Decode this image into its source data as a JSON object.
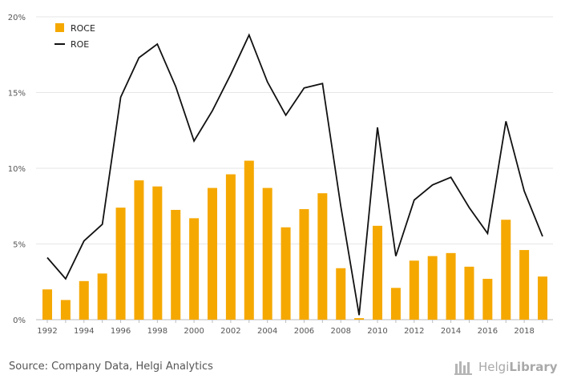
{
  "chart_data": {
    "type": "bar",
    "x": [
      1992,
      1993,
      1994,
      1995,
      1996,
      1997,
      1998,
      1999,
      2000,
      2001,
      2002,
      2003,
      2004,
      2005,
      2006,
      2007,
      2008,
      2009,
      2010,
      2011,
      2012,
      2013,
      2014,
      2015,
      2016,
      2017,
      2018,
      2019
    ],
    "xtick_labels": [
      "1992",
      "1994",
      "1996",
      "1998",
      "2000",
      "2002",
      "2004",
      "2006",
      "2008",
      "2010",
      "2012",
      "2014",
      "2016",
      "2018"
    ],
    "ytick_labels": [
      "0%",
      "5%",
      "10%",
      "15%",
      "20%"
    ],
    "ylim": [
      0,
      20
    ],
    "grid": true,
    "legend_position": "top-left",
    "series": [
      {
        "name": "ROCE",
        "kind": "bar",
        "color": "#f5a800",
        "values": [
          2.0,
          1.3,
          2.55,
          3.05,
          7.4,
          9.2,
          8.8,
          7.25,
          6.7,
          8.7,
          9.6,
          10.5,
          8.7,
          6.1,
          7.3,
          8.35,
          3.4,
          0.1,
          6.2,
          2.1,
          3.9,
          4.2,
          4.4,
          3.5,
          2.7,
          6.6,
          4.6,
          2.85
        ]
      },
      {
        "name": "ROE",
        "kind": "line",
        "color": "#111111",
        "values": [
          4.1,
          2.7,
          5.2,
          6.3,
          14.7,
          17.3,
          18.2,
          15.4,
          11.8,
          13.8,
          16.2,
          18.8,
          15.7,
          13.5,
          15.3,
          15.6,
          7.5,
          0.3,
          12.7,
          4.2,
          7.9,
          8.9,
          9.4,
          7.4,
          5.7,
          13.1,
          8.5,
          5.5
        ]
      }
    ]
  },
  "footer": {
    "source": "Source: Company Data, Helgi Analytics",
    "logo_light": "Helgi",
    "logo_bold": "Library"
  }
}
